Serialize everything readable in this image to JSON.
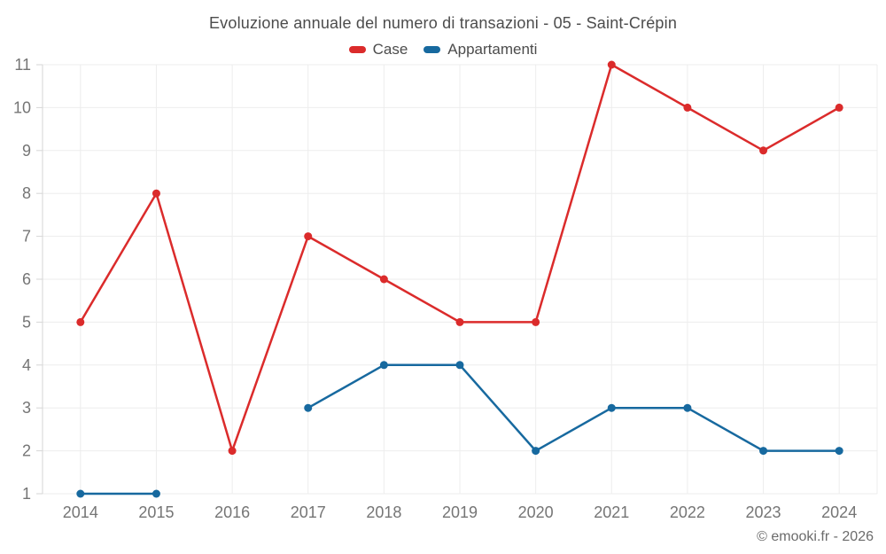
{
  "footer": {
    "credit": "© emooki.fr - 2026"
  },
  "chart_data": {
    "type": "line",
    "title": "Evoluzione annuale del numero di transazioni - 05 - Saint-Crépin",
    "categories": [
      "2014",
      "2015",
      "2016",
      "2017",
      "2018",
      "2019",
      "2020",
      "2021",
      "2022",
      "2023",
      "2024"
    ],
    "series": [
      {
        "name": "Case",
        "color": "#db2b2b",
        "values": [
          5,
          8,
          2,
          7,
          6,
          5,
          5,
          11,
          10,
          9,
          10
        ]
      },
      {
        "name": "Appartamenti",
        "color": "#17699f",
        "values": [
          1,
          1,
          null,
          3,
          4,
          4,
          2,
          3,
          3,
          2,
          2
        ]
      }
    ],
    "xlabel": "",
    "ylabel": "",
    "ylim": [
      1,
      11
    ],
    "yticks": [
      1,
      2,
      3,
      4,
      5,
      6,
      7,
      8,
      9,
      10,
      11
    ],
    "grid": true,
    "legend_position": "top",
    "style": {
      "grid_color": "#ededed",
      "axis_color": "#d6d6d6",
      "tick_label_color": "#757575",
      "title_color": "#4c4c4c"
    }
  }
}
